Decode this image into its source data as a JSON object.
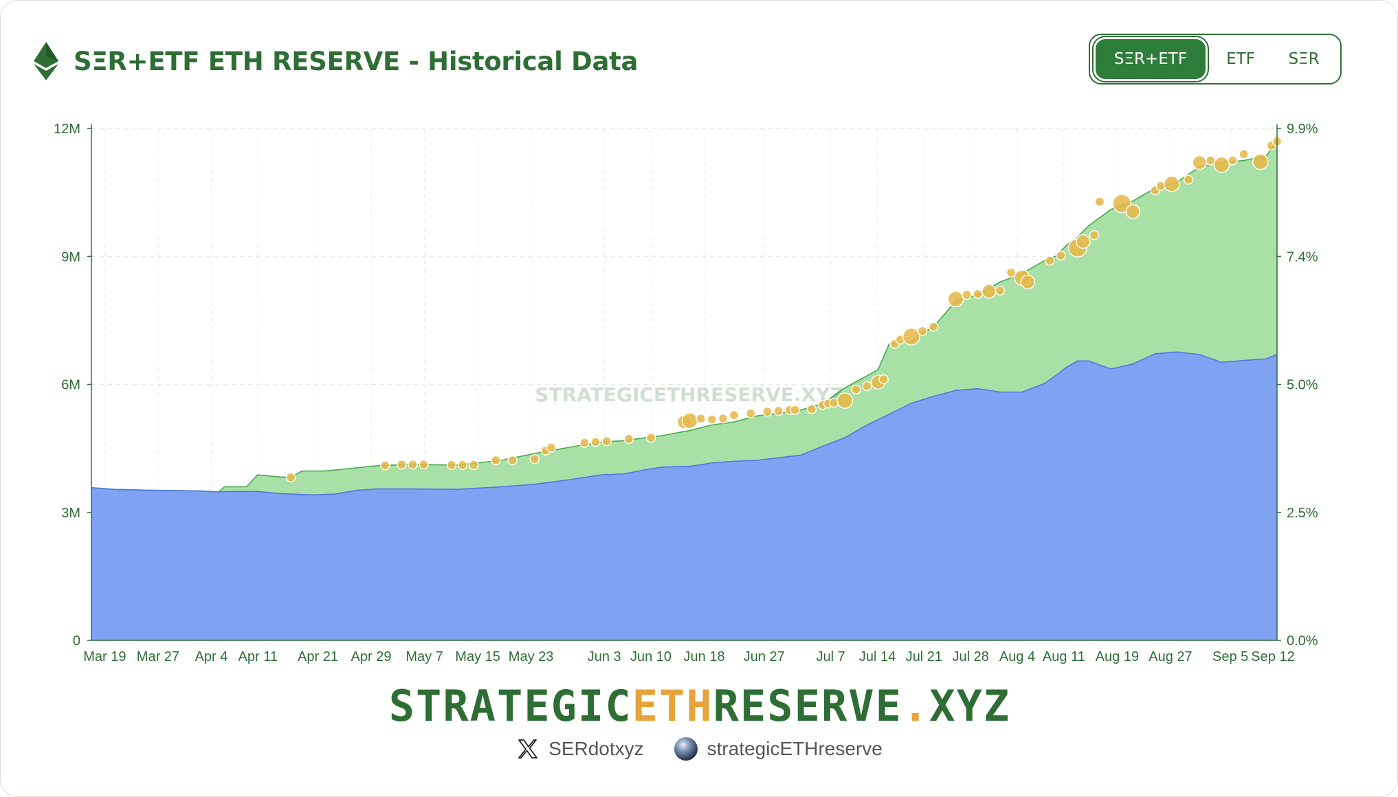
{
  "header": {
    "title": "SΞR+ETF ETH RESERVE - Historical Data",
    "logo_icon": "ethereum-icon"
  },
  "toggle": {
    "options": [
      "SΞR+ETF",
      "ETF",
      "SΞR"
    ],
    "active": "SΞR+ETF"
  },
  "colors": {
    "accent": "#2e6e35",
    "etf_area": "#7fa3f2",
    "ser_area": "#a8e0a6",
    "marker": "#e6b84a",
    "brand_highlight": "#e6a33a"
  },
  "chart_data": {
    "type": "area",
    "title": "",
    "y_left": {
      "ticks": [
        "0",
        "3M",
        "6M",
        "9M",
        "12M"
      ],
      "range": [
        0,
        12000000
      ]
    },
    "y_right": {
      "ticks": [
        "0.0%",
        "2.5%",
        "5.0%",
        "7.4%",
        "9.9%"
      ],
      "range": [
        0,
        9.9
      ]
    },
    "x_ticks": [
      "Mar 19",
      "Mar 27",
      "Apr 4",
      "Apr 11",
      "Apr 21",
      "Apr 29",
      "May 7",
      "May 15",
      "May 23",
      "Jun 3",
      "Jun 10",
      "Jun 18",
      "Jun 27",
      "Jul 7",
      "Jul 14",
      "Jul 21",
      "Jul 28",
      "Aug 4",
      "Aug 11",
      "Aug 19",
      "Aug 27",
      "Sep 5",
      "Sep 12"
    ],
    "x_tick_index": [
      2,
      10,
      18,
      25,
      34,
      42,
      50,
      58,
      66,
      77,
      84,
      92,
      101,
      111,
      118,
      125,
      132,
      139,
      146,
      154,
      162,
      171,
      178
    ],
    "x_range_days": [
      0,
      178
    ],
    "grid": true,
    "watermark": "STRATEGICETHRESERVE.XYZ",
    "series": [
      {
        "name": "ETF",
        "color": "#7fa3f2",
        "points": [
          [
            0,
            3.58
          ],
          [
            4,
            3.54
          ],
          [
            10,
            3.52
          ],
          [
            16,
            3.51
          ],
          [
            20,
            3.5
          ],
          [
            23,
            3.48
          ],
          [
            26,
            3.49
          ],
          [
            30,
            3.49
          ],
          [
            34,
            3.44
          ],
          [
            40,
            3.41
          ],
          [
            44,
            3.43
          ],
          [
            48,
            3.52
          ],
          [
            52,
            3.55
          ],
          [
            58,
            3.55
          ],
          [
            66,
            3.54
          ],
          [
            74,
            3.6
          ],
          [
            80,
            3.66
          ],
          [
            86,
            3.76
          ],
          [
            92,
            3.88
          ],
          [
            96,
            3.9
          ],
          [
            100,
            4.0
          ],
          [
            103,
            4.06
          ],
          [
            108,
            4.08
          ],
          [
            112,
            4.16
          ],
          [
            116,
            4.2
          ],
          [
            120,
            4.22
          ],
          [
            124,
            4.28
          ],
          [
            128,
            4.34
          ],
          [
            132,
            4.55
          ],
          [
            136,
            4.75
          ],
          [
            140,
            5.05
          ],
          [
            144,
            5.3
          ],
          [
            148,
            5.56
          ],
          [
            152,
            5.72
          ],
          [
            156,
            5.86
          ],
          [
            160,
            5.9
          ],
          [
            164,
            5.82
          ],
          [
            168,
            5.82
          ],
          [
            172,
            6.02
          ],
          [
            174,
            6.2
          ],
          [
            176,
            6.4
          ],
          [
            178,
            6.55
          ],
          [
            180,
            6.55
          ],
          [
            184,
            6.36
          ],
          [
            188,
            6.48
          ],
          [
            192,
            6.72
          ],
          [
            196,
            6.76
          ],
          [
            200,
            6.7
          ],
          [
            204,
            6.52
          ],
          [
            208,
            6.56
          ],
          [
            212,
            6.6
          ],
          [
            214,
            6.7
          ]
        ]
      },
      {
        "name": "SER+ETF",
        "color": "#a8e0a6",
        "points": [
          [
            0,
            3.58
          ],
          [
            4,
            3.54
          ],
          [
            10,
            3.52
          ],
          [
            16,
            3.51
          ],
          [
            20,
            3.5
          ],
          [
            23,
            3.48
          ],
          [
            24,
            3.6
          ],
          [
            28,
            3.6
          ],
          [
            30,
            3.88
          ],
          [
            34,
            3.83
          ],
          [
            36,
            3.82
          ],
          [
            38,
            3.97
          ],
          [
            42,
            3.97
          ],
          [
            46,
            4.02
          ],
          [
            52,
            4.1
          ],
          [
            58,
            4.12
          ],
          [
            66,
            4.11
          ],
          [
            74,
            4.22
          ],
          [
            80,
            4.38
          ],
          [
            86,
            4.52
          ],
          [
            92,
            4.65
          ],
          [
            96,
            4.68
          ],
          [
            100,
            4.75
          ],
          [
            103,
            4.8
          ],
          [
            108,
            4.92
          ],
          [
            112,
            5.05
          ],
          [
            116,
            5.12
          ],
          [
            120,
            5.26
          ],
          [
            124,
            5.32
          ],
          [
            128,
            5.4
          ],
          [
            132,
            5.55
          ],
          [
            136,
            5.92
          ],
          [
            140,
            6.2
          ],
          [
            142,
            6.35
          ],
          [
            144,
            6.95
          ],
          [
            148,
            7.0
          ],
          [
            150,
            7.2
          ],
          [
            152,
            7.35
          ],
          [
            154,
            7.65
          ],
          [
            156,
            7.95
          ],
          [
            160,
            8.1
          ],
          [
            164,
            8.4
          ],
          [
            168,
            8.6
          ],
          [
            172,
            8.9
          ],
          [
            174,
            9.0
          ],
          [
            176,
            9.26
          ],
          [
            178,
            9.45
          ],
          [
            180,
            9.72
          ],
          [
            184,
            10.1
          ],
          [
            188,
            10.3
          ],
          [
            192,
            10.6
          ],
          [
            196,
            10.75
          ],
          [
            200,
            11.1
          ],
          [
            204,
            11.2
          ],
          [
            208,
            11.25
          ],
          [
            212,
            11.35
          ],
          [
            214,
            11.7
          ]
        ]
      }
    ],
    "markers": [
      [
        36,
        3.82,
        1
      ],
      [
        53,
        4.1,
        1
      ],
      [
        56,
        4.12,
        1
      ],
      [
        58,
        4.12,
        1
      ],
      [
        60,
        4.12,
        1
      ],
      [
        65,
        4.11,
        1
      ],
      [
        67,
        4.11,
        1
      ],
      [
        69,
        4.11,
        1
      ],
      [
        73,
        4.22,
        1
      ],
      [
        76,
        4.22,
        1
      ],
      [
        80,
        4.25,
        1
      ],
      [
        82,
        4.45,
        1
      ],
      [
        83,
        4.52,
        1
      ],
      [
        89,
        4.63,
        1
      ],
      [
        91,
        4.65,
        1
      ],
      [
        93,
        4.67,
        1
      ],
      [
        97,
        4.72,
        1
      ],
      [
        101,
        4.75,
        1
      ],
      [
        107,
        5.12,
        1.5
      ],
      [
        108,
        5.15,
        2
      ],
      [
        110,
        5.2,
        1
      ],
      [
        112,
        5.18,
        1
      ],
      [
        114,
        5.2,
        1
      ],
      [
        116,
        5.28,
        1
      ],
      [
        119,
        5.32,
        1
      ],
      [
        122,
        5.36,
        1
      ],
      [
        124,
        5.38,
        1
      ],
      [
        126,
        5.4,
        1
      ],
      [
        127,
        5.4,
        1
      ],
      [
        130,
        5.42,
        1
      ],
      [
        132,
        5.52,
        1
      ],
      [
        133,
        5.55,
        1
      ],
      [
        134,
        5.57,
        1
      ],
      [
        136,
        5.62,
        2
      ],
      [
        138,
        5.88,
        1
      ],
      [
        140,
        5.96,
        1
      ],
      [
        142,
        6.05,
        1.5
      ],
      [
        143,
        6.12,
        1
      ],
      [
        145,
        6.95,
        1
      ],
      [
        146,
        7.05,
        1
      ],
      [
        148,
        7.12,
        2.5
      ],
      [
        150,
        7.25,
        1
      ],
      [
        152,
        7.35,
        1
      ],
      [
        156,
        8.0,
        2
      ],
      [
        158,
        8.1,
        1
      ],
      [
        160,
        8.12,
        1
      ],
      [
        162,
        8.18,
        1.5
      ],
      [
        164,
        8.2,
        1
      ],
      [
        166,
        8.62,
        1
      ],
      [
        168,
        8.5,
        2
      ],
      [
        169,
        8.4,
        1.5
      ],
      [
        173,
        8.9,
        1
      ],
      [
        175,
        9.02,
        1
      ],
      [
        178,
        9.2,
        3
      ],
      [
        179,
        9.35,
        1.5
      ],
      [
        181,
        9.5,
        1
      ],
      [
        182,
        10.28,
        1
      ],
      [
        186,
        10.24,
        3
      ],
      [
        188,
        10.05,
        1.5
      ],
      [
        192,
        10.55,
        1
      ],
      [
        193,
        10.65,
        1
      ],
      [
        195,
        10.7,
        2
      ],
      [
        198,
        10.8,
        1
      ],
      [
        200,
        11.2,
        1.5
      ],
      [
        202,
        11.25,
        1
      ],
      [
        204,
        11.15,
        2
      ],
      [
        206,
        11.25,
        1
      ],
      [
        208,
        11.4,
        1
      ],
      [
        211,
        11.22,
        2
      ],
      [
        213,
        11.6,
        1
      ],
      [
        214,
        11.7,
        1
      ]
    ]
  },
  "brand": {
    "part1": "STRATEGIC",
    "part2": "ETH",
    "part3": "RESERVE",
    "part4": ".",
    "part5": "XYZ"
  },
  "socials": [
    {
      "icon": "x-icon",
      "label": "SERdotxyz"
    },
    {
      "icon": "globe-icon",
      "label": "strategicETHreserve"
    }
  ]
}
